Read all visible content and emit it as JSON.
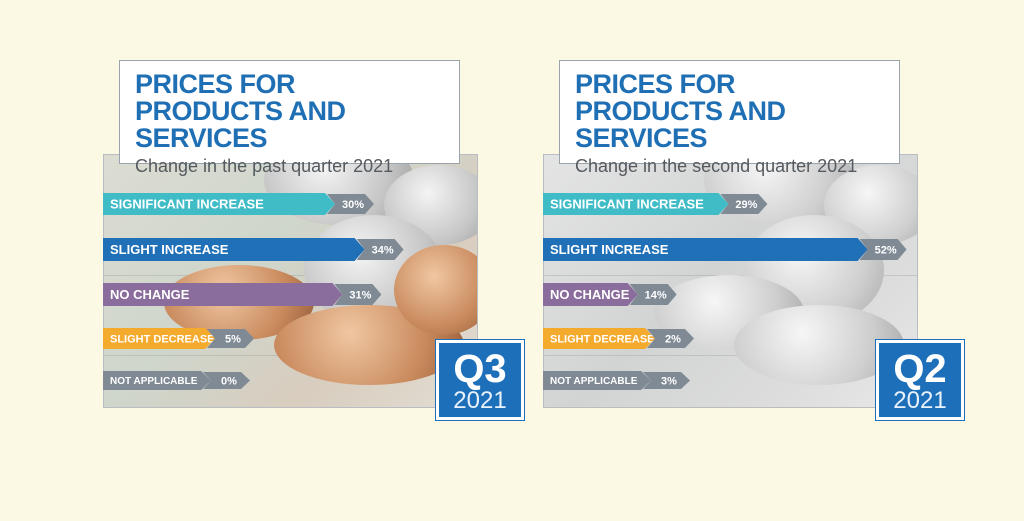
{
  "colors": {
    "significant_increase": "#3fbcc6",
    "slight_increase": "#1f70b7",
    "no_change": "#8a6d9d",
    "slight_decrease": "#f3aa2d",
    "not_applicable": "#7f8a95",
    "value_tag": "#7f8a95",
    "title": "#1f6fb5",
    "badge": "#1e6fba"
  },
  "chart_data": [
    {
      "type": "bar",
      "orientation": "horizontal",
      "title": "PRICES FOR PRODUCTS AND SERVICES",
      "subtitle": "Change in the past quarter 2021",
      "badge": {
        "quarter": "Q3",
        "year": "2021"
      },
      "categories": [
        "SIGNIFICANT INCREASE",
        "SLIGHT INCREASE",
        "NO CHANGE",
        "SLIGHT DECREASE",
        "NOT APPLICABLE"
      ],
      "values": [
        30,
        34,
        31,
        5,
        0
      ],
      "value_labels": [
        "30%",
        "34%",
        "31%",
        "5%",
        "0%"
      ],
      "unit": "%"
    },
    {
      "type": "bar",
      "orientation": "horizontal",
      "title": "PRICES FOR PRODUCTS AND SERVICES",
      "subtitle": "Change in the second quarter 2021",
      "badge": {
        "quarter": "Q2",
        "year": "2021"
      },
      "categories": [
        "SIGNIFICANT INCREASE",
        "SLIGHT INCREASE",
        "NO CHANGE",
        "SLIGHT DECREASE",
        "NOT APPLICABLE"
      ],
      "values": [
        29,
        52,
        14,
        2,
        3
      ],
      "value_labels": [
        "29%",
        "52%",
        "14%",
        "2%",
        "3%"
      ],
      "unit": "%"
    }
  ]
}
